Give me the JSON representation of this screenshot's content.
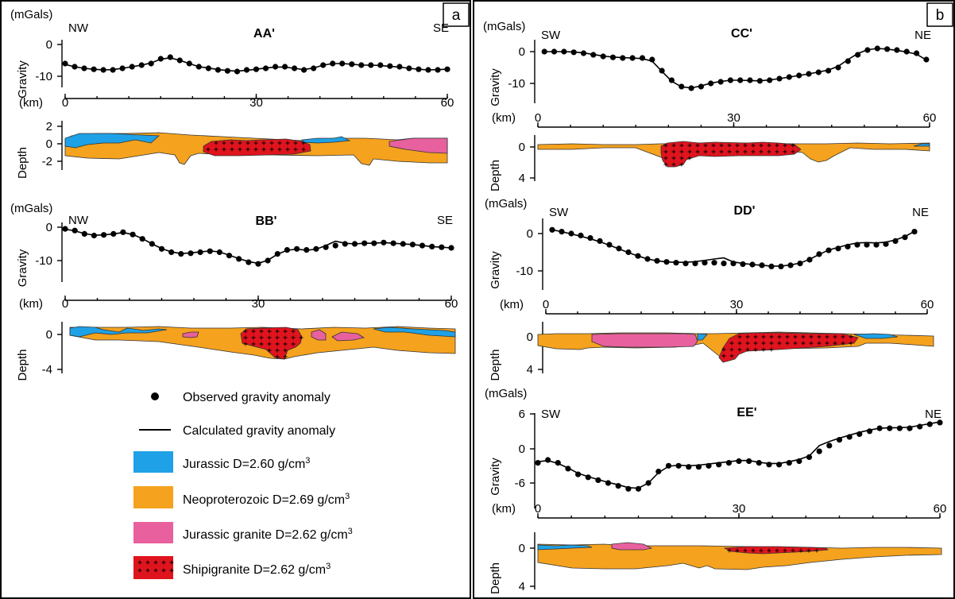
{
  "panels": [
    {
      "letter": "a"
    },
    {
      "letter": "b"
    }
  ],
  "colors": {
    "jurassic": "#1ea1e6",
    "neoproterozoic": "#f5a21e",
    "jurassic_granite": "#e8609e",
    "shipigranite": "#e0141e"
  },
  "legend": {
    "observed": "Observed gravity anomaly",
    "calculated": "Calculated gravity anomaly",
    "items": [
      {
        "key": "jurassic",
        "label": "Jurassic D=2.60 g/cm",
        "sup": "3"
      },
      {
        "key": "neoproterozoic",
        "label": "Neoproterozoic D=2.69 g/cm",
        "sup": "3"
      },
      {
        "key": "jurassic_granite",
        "label": "Jurassic granite D=2.62 g/cm",
        "sup": "3"
      },
      {
        "key": "shipigranite",
        "label": "Shipigranite D=2.62 g/cm",
        "sup": "3"
      }
    ]
  },
  "chart_data": [
    {
      "type": "line",
      "profile": "AA'",
      "title": "AA'",
      "left": "NW",
      "right": "SE",
      "gravity_unit": "(mGals)",
      "gravity_label": "Gravity",
      "gravity_ticks": [
        0,
        -10
      ],
      "gravity_range": [
        -13,
        3
      ],
      "distance_unit": "(km)",
      "x_ticks": [
        0,
        30,
        60
      ],
      "x_range": [
        0,
        60
      ],
      "depth_label": "Depth",
      "depth_ticks": [
        2,
        0,
        -2
      ],
      "x": [
        0,
        1.5,
        3,
        4.5,
        6,
        7.5,
        9,
        10.5,
        12,
        13.5,
        15,
        16.5,
        18,
        19.5,
        21,
        22.5,
        24,
        25.5,
        27,
        28.5,
        30,
        31.5,
        33,
        34.5,
        36,
        37.5,
        39,
        40.5,
        42,
        43.5,
        45,
        46.5,
        48,
        49.5,
        51,
        52.5,
        54,
        55.5,
        57,
        58.5,
        60
      ],
      "observed": [
        -6,
        -7,
        -7.5,
        -7.8,
        -8,
        -8,
        -7.5,
        -7,
        -6.5,
        -6,
        -4.5,
        -4,
        -5,
        -6,
        -7,
        -7.5,
        -8,
        -8.3,
        -8.5,
        -8,
        -7.8,
        -7.5,
        -7,
        -7,
        -7.5,
        -8,
        -7.5,
        -6.5,
        -6,
        -6,
        -6.2,
        -6.5,
        -6.5,
        -6.5,
        -6.8,
        -7,
        -7.5,
        -7.8,
        -8,
        -8,
        -7.8
      ],
      "calculated": [
        -6.3,
        -7,
        -7.5,
        -7.8,
        -8,
        -7.9,
        -7.5,
        -7,
        -6.5,
        -5.8,
        -4.6,
        -4.2,
        -5,
        -6,
        -7,
        -7.4,
        -7.9,
        -8.2,
        -8.4,
        -8.1,
        -7.8,
        -7.4,
        -7.1,
        -7.1,
        -7.5,
        -7.9,
        -7.4,
        -6.5,
        -6,
        -6,
        -6.2,
        -6.5,
        -6.5,
        -6.6,
        -6.9,
        -7.1,
        -7.5,
        -7.8,
        -8,
        -7.9,
        -7.8
      ]
    },
    {
      "type": "line",
      "profile": "BB'",
      "title": "BB'",
      "left": "NW",
      "right": "SE",
      "gravity_unit": "(mGals)",
      "gravity_label": "Gravity",
      "gravity_ticks": [
        0,
        -10
      ],
      "gravity_range": [
        -12,
        3
      ],
      "distance_unit": "(km)",
      "x_ticks": [
        0,
        30,
        60
      ],
      "x_range": [
        0,
        60
      ],
      "depth_label": "Depth",
      "depth_ticks": [
        0,
        -4
      ],
      "x": [
        0,
        1.5,
        3,
        4.5,
        6,
        7.5,
        9,
        10.5,
        12,
        13.5,
        15,
        16.5,
        18,
        19.5,
        21,
        22.5,
        24,
        25.5,
        27,
        28.5,
        30,
        31.5,
        33,
        34.5,
        36,
        37.5,
        39,
        40.5,
        42,
        43.5,
        45,
        46.5,
        48,
        49.5,
        51,
        52.5,
        54,
        55.5,
        57,
        58.5,
        60
      ],
      "observed": [
        -0.5,
        -1,
        -2,
        -2.5,
        -2.3,
        -2,
        -1.5,
        -2.2,
        -3.5,
        -5,
        -6.5,
        -7.5,
        -8,
        -7.8,
        -7.5,
        -7.2,
        -7.5,
        -8.5,
        -9.5,
        -10.5,
        -11,
        -10,
        -8,
        -6.8,
        -6.5,
        -6.8,
        -6.5,
        -6,
        -5.5,
        -5,
        -5,
        -4.8,
        -4.8,
        -4.6,
        -4.8,
        -5,
        -5.2,
        -5.5,
        -5.8,
        -6,
        -6.2
      ],
      "calculated": [
        -0.6,
        -1.1,
        -1.9,
        -2.4,
        -2.3,
        -2,
        -1.6,
        -2.2,
        -3.4,
        -5,
        -6.4,
        -7.4,
        -7.9,
        -7.7,
        -7.4,
        -7.1,
        -7.4,
        -8.4,
        -9.4,
        -10.3,
        -10.8,
        -9.9,
        -8.1,
        -6.9,
        -6.6,
        -6.9,
        -6.6,
        -5.5,
        -4.2,
        -4.8,
        -5,
        -4.8,
        -4.8,
        -4.6,
        -4.8,
        -5,
        -5.2,
        -5.5,
        -5.8,
        -6,
        -6.2
      ]
    },
    {
      "type": "line",
      "profile": "CC'",
      "title": "CC'",
      "left": "SW",
      "right": "NE",
      "gravity_unit": "(mGals)",
      "gravity_label": "Gravity",
      "gravity_ticks": [
        0,
        -10
      ],
      "gravity_range": [
        -13,
        3
      ],
      "distance_unit": "(km)",
      "x_ticks": [
        0,
        30,
        60
      ],
      "x_range": [
        0,
        60
      ],
      "depth_label": "Depth",
      "depth_ticks": [
        0,
        4
      ],
      "x": [
        1,
        2.5,
        4,
        5.5,
        7,
        8.5,
        10,
        11.5,
        13,
        14.5,
        16,
        17.5,
        19,
        20.5,
        22,
        23.5,
        25,
        26.5,
        28,
        29.5,
        31,
        32.5,
        34,
        35.5,
        37,
        38.5,
        40,
        41.5,
        43,
        44.5,
        46,
        47.5,
        49,
        50.5,
        52,
        53.5,
        55,
        56.5,
        58,
        59.5
      ],
      "observed": [
        0,
        0,
        0,
        -0.2,
        -0.5,
        -1,
        -1.5,
        -1.8,
        -2,
        -2,
        -2,
        -2.5,
        -6,
        -9,
        -11,
        -11.5,
        -11,
        -10,
        -9.5,
        -9,
        -9,
        -9,
        -9.2,
        -9,
        -8.5,
        -8,
        -7.5,
        -7,
        -6.5,
        -6,
        -5,
        -3,
        -1,
        0.5,
        1,
        0.8,
        0.5,
        0,
        -0.5,
        -2.5
      ],
      "calculated": [
        0,
        0,
        0,
        -0.1,
        -0.4,
        -0.9,
        -1.4,
        -1.7,
        -1.9,
        -2,
        -2.2,
        -3,
        -6.2,
        -9.3,
        -11.1,
        -11.4,
        -10.8,
        -9.9,
        -9.4,
        -9,
        -9,
        -9.1,
        -9.2,
        -8.9,
        -8.5,
        -8,
        -7.5,
        -7,
        -6.4,
        -5.8,
        -4.6,
        -2.5,
        -0.6,
        0.6,
        1,
        0.8,
        0.4,
        -0.1,
        -0.8,
        -2.6
      ]
    },
    {
      "type": "line",
      "profile": "DD'",
      "title": "DD'",
      "left": "SW",
      "right": "NE",
      "gravity_unit": "(mGals)",
      "gravity_label": "Gravity",
      "gravity_ticks": [
        0,
        -10
      ],
      "gravity_range": [
        -11,
        3
      ],
      "distance_unit": "(km)",
      "x_ticks": [
        0,
        30,
        60
      ],
      "x_range": [
        0,
        60
      ],
      "depth_label": "Depth",
      "depth_ticks": [
        0,
        4
      ],
      "x": [
        1,
        2.5,
        4,
        5.5,
        7,
        8.5,
        10,
        11.5,
        13,
        14.5,
        16,
        17.5,
        19,
        20.5,
        22,
        23.5,
        25,
        26.5,
        28,
        29.5,
        31,
        32.5,
        34,
        35.5,
        37,
        38.5,
        40,
        41.5,
        43,
        44.5,
        46,
        47.5,
        49,
        50.5,
        52,
        53.5,
        55,
        56.5,
        58
      ],
      "observed": [
        1,
        0.5,
        0,
        -0.5,
        -1.2,
        -2,
        -3,
        -4,
        -5,
        -6,
        -6.8,
        -7.3,
        -7.6,
        -7.8,
        -8,
        -8,
        -7.8,
        -7.8,
        -8,
        -8,
        -8.2,
        -8.3,
        -8.5,
        -8.8,
        -8.8,
        -8.5,
        -8,
        -7,
        -5.5,
        -4.5,
        -4,
        -3.5,
        -3,
        -3,
        -3,
        -2.8,
        -2,
        -1,
        0.5
      ],
      "calculated": [
        1,
        0.5,
        -0.1,
        -0.7,
        -1.4,
        -2.2,
        -3.1,
        -4.1,
        -5.1,
        -6,
        -6.8,
        -7.3,
        -7.6,
        -7.7,
        -7.7,
        -7.5,
        -7.2,
        -6.8,
        -6.5,
        -7.6,
        -8,
        -8.3,
        -8.5,
        -8.7,
        -8.7,
        -8.4,
        -7.9,
        -6.9,
        -5.6,
        -4.4,
        -3.7,
        -3,
        -2.5,
        -2.4,
        -2.5,
        -2.3,
        -1.7,
        -0.8,
        0.6
      ]
    },
    {
      "type": "line",
      "profile": "EE'",
      "title": "EE'",
      "left": "SW",
      "right": "NE",
      "gravity_unit": "(mGals)",
      "gravity_label": "Gravity",
      "gravity_ticks": [
        6,
        0,
        -6
      ],
      "gravity_range": [
        -8,
        7
      ],
      "distance_unit": "(km)",
      "x_ticks": [
        0,
        30,
        60
      ],
      "x_range": [
        0,
        60
      ],
      "depth_label": "Depth",
      "depth_ticks": [
        0,
        4
      ],
      "x": [
        0,
        1.5,
        3,
        4.5,
        6,
        7.5,
        9,
        10.5,
        12,
        13.5,
        15,
        16.5,
        18,
        19.5,
        21,
        22.5,
        24,
        25.5,
        27,
        28.5,
        30,
        31.5,
        33,
        34.5,
        36,
        37.5,
        39,
        40.5,
        42,
        43.5,
        45,
        46.5,
        48,
        49.5,
        51,
        52.5,
        54,
        55.5,
        57,
        58.5,
        60
      ],
      "observed": [
        -2.5,
        -2,
        -2.5,
        -3.5,
        -4.5,
        -5,
        -5.5,
        -6,
        -6.5,
        -7,
        -7,
        -6,
        -4,
        -3,
        -3,
        -3.2,
        -3.2,
        -3,
        -2.8,
        -2.5,
        -2.2,
        -2.2,
        -2.5,
        -2.8,
        -2.8,
        -2.5,
        -2.2,
        -1.5,
        -0.5,
        0.5,
        1.5,
        2,
        2.5,
        3,
        3.5,
        3.5,
        3.5,
        3.5,
        3.8,
        4.2,
        4.5
      ],
      "calculated": [
        -2.3,
        -2.1,
        -2.6,
        -3.4,
        -4.3,
        -4.9,
        -5.4,
        -5.9,
        -6.3,
        -6.8,
        -6.9,
        -6,
        -4.2,
        -3.1,
        -2.9,
        -3,
        -2.9,
        -2.7,
        -2.5,
        -2.3,
        -2.1,
        -2.1,
        -2.4,
        -2.6,
        -2.6,
        -2.3,
        -1.9,
        -1.3,
        0.5,
        1.2,
        1.8,
        2.3,
        2.8,
        3.2,
        3.5,
        3.6,
        3.6,
        3.7,
        4,
        4.3,
        4.6
      ]
    }
  ]
}
